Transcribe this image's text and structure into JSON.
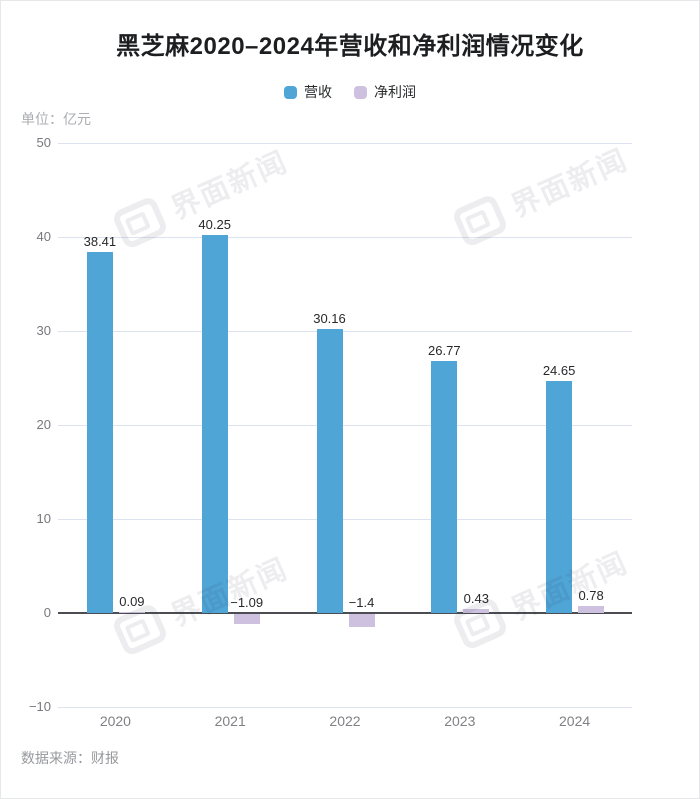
{
  "title": "黑芝麻2020–2024年营收和净利润情况变化",
  "unit_label": "单位：亿元",
  "source": "数据来源：财报",
  "watermark": {
    "text": "界面新闻"
  },
  "legend": [
    {
      "label": "营收",
      "color": "#4FA5D5"
    },
    {
      "label": "净利润",
      "color": "#CDC1DF"
    }
  ],
  "chart_data": {
    "type": "bar",
    "title": "黑芝麻2020–2024年营收和净利润情况变化",
    "unit": "亿元",
    "categories": [
      "2020",
      "2021",
      "2022",
      "2023",
      "2024"
    ],
    "series": [
      {
        "name": "营收",
        "color": "#4FA5D5",
        "values": [
          38.41,
          40.25,
          30.16,
          26.77,
          24.65
        ],
        "labels": [
          "38.41",
          "40.25",
          "30.16",
          "26.77",
          "24.65"
        ]
      },
      {
        "name": "净利润",
        "color": "#CDC1DF",
        "values": [
          0.09,
          -1.09,
          -1.4,
          0.43,
          0.78
        ],
        "labels": [
          "0.09",
          "−1.09",
          "−1.4",
          "0.43",
          "0.78"
        ]
      }
    ],
    "ylim": [
      -10,
      50
    ],
    "yticks": [
      50,
      40,
      30,
      20,
      10,
      0,
      -10
    ],
    "grid": true,
    "legend_position": "top",
    "colors": {
      "gridline": "#dde3ee",
      "zero_line": "#4b4d52",
      "tick_label": "#77787c",
      "bar_label": "#28292b"
    }
  }
}
